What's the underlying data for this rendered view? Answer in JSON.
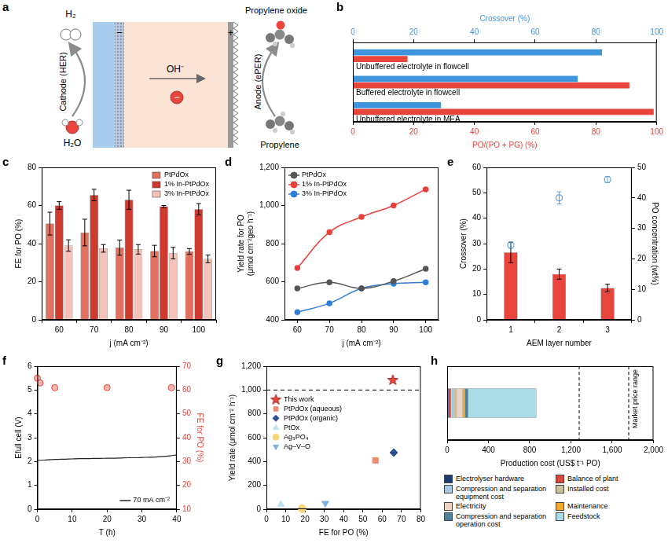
{
  "diagram": {
    "panel": "a",
    "cathode_label": "Cathode (HER)",
    "anode_label": "Anode (ePER)",
    "cathode_product": "H₂",
    "cathode_reactant": "H₂O",
    "ion": "OH⁻",
    "ion_charge": "−",
    "cathode_sign": "−",
    "anode_sign": "+",
    "anode_product": "Propylene oxide",
    "anode_reactant": "Propylene"
  },
  "chart_data": [
    {
      "panel": "b",
      "type": "bar",
      "orientation": "horizontal",
      "grid": false,
      "categories": [
        "Unbuffered electrolyte in flowcell",
        "Buffered electrolyte in flowcell",
        "Unbuffered electrolyte in MEA"
      ],
      "xlabel": "PO/(PO + PG) (%)",
      "xlim": [
        0,
        100
      ],
      "xticks": [
        0,
        20,
        40,
        60,
        80,
        100
      ],
      "x2label": "Crossover (%)",
      "x2lim": [
        0,
        100
      ],
      "x2ticks": [
        0,
        20,
        40,
        60,
        80,
        100
      ],
      "series": [
        {
          "axis": "x2",
          "color": "#3f95dd",
          "values": [
            82,
            74,
            29
          ]
        },
        {
          "color": "#e8453c",
          "values": [
            18,
            91,
            99
          ]
        }
      ]
    },
    {
      "panel": "c",
      "type": "bar",
      "grid": false,
      "legend": "top right",
      "categories": [
        60,
        70,
        80,
        90,
        100
      ],
      "xlabel": "j (mA cm⁻²)",
      "ylabel": "FE for PO (%)",
      "ylim": [
        0,
        80
      ],
      "yticks": [
        0,
        20,
        40,
        60,
        80
      ],
      "series": [
        {
          "name": "PtPdOx",
          "color": "#e2705f",
          "values": [
            50.5,
            45.8,
            37.9,
            36.1,
            35.9
          ],
          "errors": [
            6,
            7,
            4,
            3,
            1.5
          ]
        },
        {
          "name": "1% In-PtPdOx",
          "color": "#cf3a2e",
          "values": [
            60,
            65.5,
            63,
            59.5,
            58
          ],
          "errors": [
            2,
            3,
            5,
            0.5,
            3
          ]
        },
        {
          "name": "3% In-PtPdOx",
          "color": "#f5c2b9",
          "values": [
            39,
            37.5,
            37,
            35,
            32
          ],
          "errors": [
            3,
            2,
            2.5,
            3,
            2
          ]
        }
      ]
    },
    {
      "panel": "d",
      "type": "line",
      "grid": false,
      "legend": "top left",
      "x": [
        60,
        70,
        80,
        90,
        100
      ],
      "xlim": [
        56,
        104
      ],
      "xticks": [
        60,
        70,
        80,
        90,
        100
      ],
      "xlabel": "j (mA cm⁻²)",
      "ylabel": "Yield rate for PO (μmol cm⁻²geo h⁻¹)",
      "ylim": [
        400,
        1200
      ],
      "yticks": [
        400,
        600,
        800,
        {
          "value": 1000,
          "label": "1,000"
        },
        {
          "value": 1200,
          "label": "1,200"
        }
      ],
      "series": [
        {
          "name": "PtPdOx",
          "color": "#555555",
          "marker": "circle",
          "values": [
            565,
            597,
            565,
            603,
            668
          ]
        },
        {
          "name": "1% In-PtPdOx",
          "color": "#e8413a",
          "marker": "circle",
          "values": [
            672,
            860,
            940,
            1000,
            1085
          ]
        },
        {
          "name": "3% In-PtPdOx",
          "color": "#2f7fd8",
          "marker": "circle",
          "values": [
            440,
            487,
            565,
            590,
            597
          ]
        }
      ]
    },
    {
      "panel": "e",
      "type": "bar",
      "grid": false,
      "categories": [
        1,
        2,
        3
      ],
      "xlabel": "AEM layer number",
      "ylabel": "Crossover (%)",
      "ylim": [
        0,
        60
      ],
      "yticks": [
        0,
        10,
        20,
        30,
        40,
        50,
        60
      ],
      "y2label": "PO concentration (wt%)",
      "y2lim": [
        0,
        50
      ],
      "y2ticks": [
        0,
        10,
        20,
        30,
        40,
        50
      ],
      "series": [
        {
          "type": "bar",
          "color": "#e8453c",
          "values": [
            26.5,
            18,
            12.5
          ],
          "errors": [
            4,
            2,
            1.5
          ]
        },
        {
          "type": "scatter",
          "axis": "y2",
          "color": "#5aa0dc",
          "marker": "circle",
          "values": [
            24.5,
            40,
            46
          ],
          "errors": [
            1,
            2,
            1
          ]
        }
      ]
    },
    {
      "panel": "f",
      "type": "line",
      "grid": false,
      "legend": "bottom right",
      "xlabel": "T (h)",
      "xlim": [
        0,
        40
      ],
      "xticks": [
        0,
        10,
        20,
        30,
        40
      ],
      "ylabel": "Efull cell (V)",
      "ylim": [
        0,
        6
      ],
      "yticks": [
        0,
        1,
        2,
        3,
        4,
        5,
        6
      ],
      "y2label": "FE for PO (%)",
      "y2lim": [
        10,
        70
      ],
      "y2ticks": [
        10,
        20,
        30,
        40,
        50,
        60,
        70
      ],
      "series": [
        {
          "name": "70 mA cm⁻²",
          "type": "line",
          "color": "#222222",
          "x": [
            0,
            2,
            4,
            6,
            8,
            10,
            12,
            14,
            16,
            18,
            20,
            22,
            24,
            26,
            28,
            30,
            32,
            34,
            36,
            38,
            40
          ],
          "values": [
            2.05,
            2.06,
            2.08,
            2.09,
            2.1,
            2.11,
            2.12,
            2.12,
            2.13,
            2.13,
            2.14,
            2.14,
            2.15,
            2.16,
            2.16,
            2.17,
            2.18,
            2.19,
            2.21,
            2.24,
            2.28
          ]
        },
        {
          "type": "scatter",
          "axis": "y2",
          "color": "#e8453c",
          "marker": "circle",
          "x": [
            0,
            0.8,
            5,
            20,
            38.5
          ],
          "values": [
            65,
            63,
            61,
            61,
            61
          ]
        }
      ]
    },
    {
      "panel": "g",
      "type": "scatter",
      "grid": false,
      "legend": "top left",
      "xlabel": "FE for PO (%)",
      "xlim": [
        0,
        80
      ],
      "xticks": [
        0,
        10,
        20,
        30,
        40,
        50,
        60,
        70,
        80
      ],
      "ylabel": "Yield rate (μmol cm⁻² h⁻¹)",
      "ylim": [
        0,
        1200
      ],
      "yticks": [
        0,
        200,
        400,
        600,
        800,
        {
          "value": 1000,
          "label": "1,000"
        },
        {
          "value": 1200,
          "label": "1,200"
        }
      ],
      "series": [
        {
          "type": "line",
          "line_style": "dashed",
          "color": "#000000",
          "x": [
            0,
            80
          ],
          "values": [
            1000,
            1000
          ]
        },
        {
          "name": "This work",
          "color": "#e8453c",
          "marker": "star",
          "x": [
            65.5
          ],
          "values": [
            1085
          ]
        },
        {
          "name": "PtPdOx (aqueous)",
          "color": "#f08a70",
          "marker": "square",
          "x": [
            56.5
          ],
          "values": [
            410
          ]
        },
        {
          "name": "PtPdOx (organic)",
          "color": "#2f4d8f",
          "marker": "diamond",
          "x": [
            66
          ],
          "values": [
            475
          ]
        },
        {
          "name": "PtOx",
          "color": "#bfe3f2",
          "marker": "triangle",
          "x": [
            7.5
          ],
          "values": [
            40
          ]
        },
        {
          "name": "Ag₃PO₄",
          "color": "#f5d67a",
          "marker": "circle",
          "x": [
            18.5
          ],
          "values": [
            5
          ]
        },
        {
          "name": "Ag–V–O",
          "color": "#7fb2dc",
          "marker": "triangle-down",
          "x": [
            30.5
          ],
          "values": [
            50
          ]
        }
      ]
    },
    {
      "panel": "h",
      "type": "bar",
      "orientation": "horizontal",
      "stacked": true,
      "grid": false,
      "legend": "bottom",
      "categories": [
        null
      ],
      "xlabel": "Production cost (US$ t⁻¹ PO)",
      "xlim": [
        0,
        2000
      ],
      "xticks": [
        0,
        400,
        800,
        {
          "value": 1200,
          "label": "1,200"
        },
        {
          "value": 1600,
          "label": "1,600"
        },
        {
          "value": 2000,
          "label": "2,000"
        }
      ],
      "market_price_range": [
        1280,
        1760
      ],
      "annotation": "Market price range",
      "series": [
        {
          "name": "Electrolyser hardware",
          "color": "#1f3a6e",
          "values": [
            15
          ]
        },
        {
          "name": "Balance of plant",
          "color": "#d9473d",
          "values": [
            25
          ]
        },
        {
          "name": "Compression and separation equipment cost",
          "color": "#a7c7e3",
          "values": [
            25
          ]
        },
        {
          "name": "Installed cost",
          "color": "#c8c29a",
          "values": [
            30
          ]
        },
        {
          "name": "Electricity",
          "color": "#eed3c2",
          "values": [
            55
          ]
        },
        {
          "name": "Maintenance",
          "color": "#f1a92e",
          "values": [
            25
          ]
        },
        {
          "name": "Compression and separation operation cost",
          "color": "#4f7f99",
          "values": [
            30
          ]
        },
        {
          "name": "Feedstock",
          "color": "#a8dde8",
          "values": [
            660
          ]
        }
      ]
    }
  ]
}
